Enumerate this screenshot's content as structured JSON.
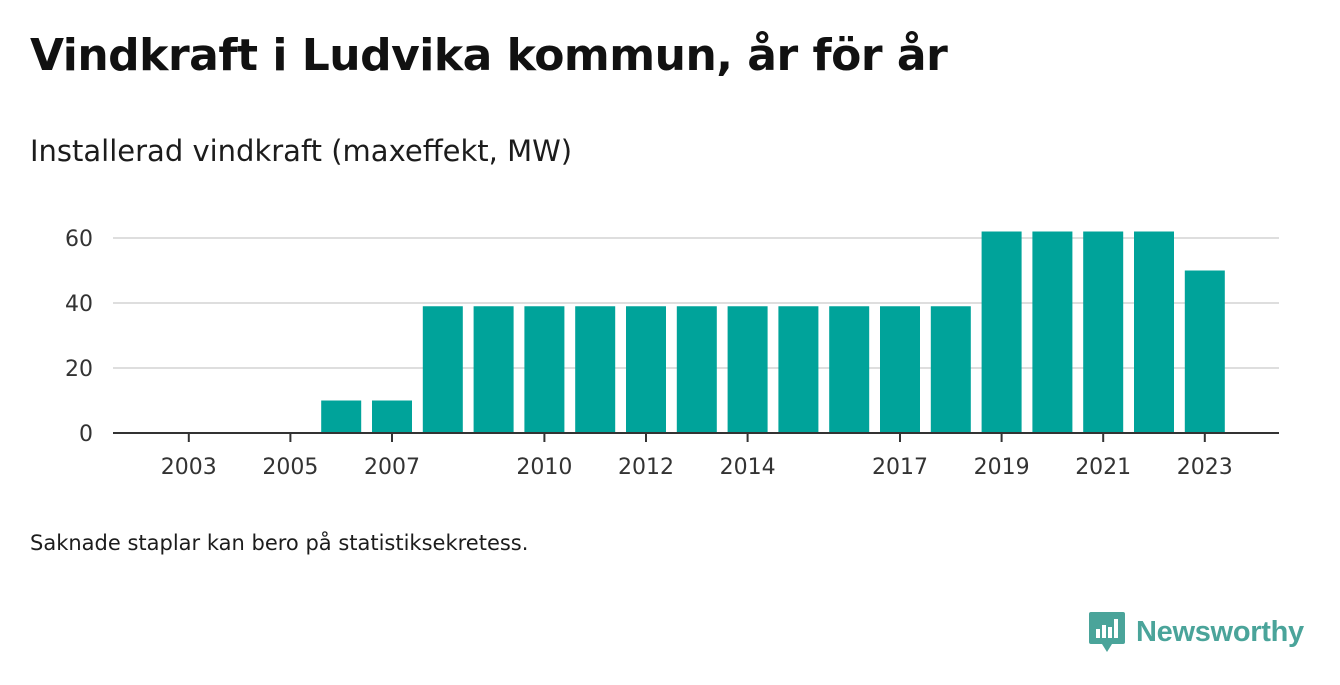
{
  "title": "Vindkraft i Ludvika kommun, år för år",
  "subtitle": "Installerad vindkraft (maxeffekt, MW)",
  "note": "Saknade staplar kan bero på statistiksekretess.",
  "brand": {
    "name": "Newsworthy",
    "logo_icon": "newsworthy-logo-icon",
    "color": "#4aa49a"
  },
  "colors": {
    "bar": "#00a39a",
    "grid": "#dedede",
    "axis": "#333333",
    "tick_text": "#333333"
  },
  "chart_data": {
    "type": "bar",
    "categories": [
      "2002",
      "2003",
      "2004",
      "2005",
      "2006",
      "2007",
      "2008",
      "2009",
      "2010",
      "2011",
      "2012",
      "2013",
      "2014",
      "2015",
      "2016",
      "2017",
      "2018",
      "2019",
      "2020",
      "2021",
      "2022",
      "2023"
    ],
    "values": [
      0,
      0,
      0,
      0,
      10,
      10,
      39,
      39,
      39,
      39,
      39,
      39,
      39,
      39,
      39,
      39,
      39,
      62,
      62,
      62,
      62,
      50
    ],
    "x_tick_labels": [
      "2003",
      "2005",
      "2007",
      "2010",
      "2012",
      "2014",
      "2017",
      "2019",
      "2021",
      "2023"
    ],
    "y_ticks": [
      0,
      20,
      40,
      60
    ],
    "ylim": [
      0,
      62
    ],
    "grid": true,
    "legend": "none"
  }
}
